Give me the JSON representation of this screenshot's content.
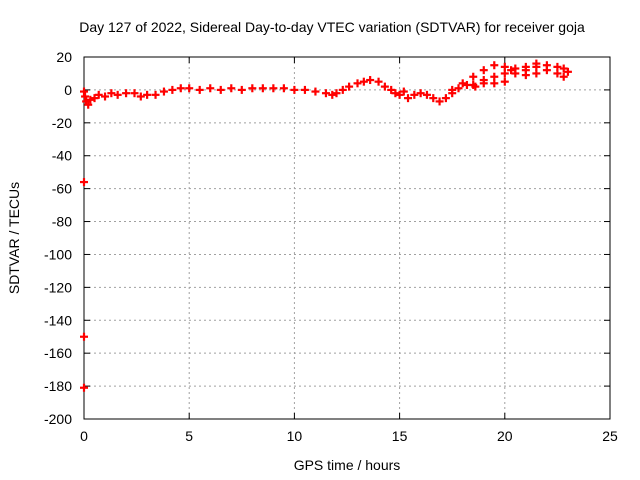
{
  "chart_data": {
    "type": "scatter",
    "title": "Day 127 of 2022, Sidereal Day-to-day VTEC variation (SDTVAR) for receiver goja",
    "xlabel": "GPS time / hours",
    "ylabel": "SDTVAR / TECUs",
    "xlim": [
      0,
      25
    ],
    "ylim": [
      -200,
      20
    ],
    "xticks": [
      0,
      5,
      10,
      15,
      20,
      25
    ],
    "yticks": [
      20,
      0,
      -20,
      -40,
      -60,
      -80,
      -100,
      -120,
      -140,
      -160,
      -180,
      -200
    ],
    "grid": true,
    "series": [
      {
        "name": "SDTVAR",
        "color": "#ff0000",
        "marker": "plus",
        "points": [
          [
            0.0,
            -1
          ],
          [
            0.05,
            -4
          ],
          [
            0.1,
            -7
          ],
          [
            0.2,
            -9
          ],
          [
            0.3,
            -6
          ],
          [
            0.5,
            -5
          ],
          [
            0.7,
            -3
          ],
          [
            1.0,
            -4
          ],
          [
            1.3,
            -2
          ],
          [
            1.6,
            -3
          ],
          [
            2.0,
            -2
          ],
          [
            2.4,
            -2
          ],
          [
            2.7,
            -4
          ],
          [
            3.0,
            -3
          ],
          [
            3.4,
            -3
          ],
          [
            3.8,
            -1
          ],
          [
            4.2,
            0
          ],
          [
            4.6,
            1
          ],
          [
            5.0,
            1
          ],
          [
            5.5,
            0
          ],
          [
            6.0,
            1
          ],
          [
            6.5,
            0
          ],
          [
            7.0,
            1
          ],
          [
            7.5,
            0
          ],
          [
            8.0,
            1
          ],
          [
            8.5,
            1
          ],
          [
            9.0,
            1
          ],
          [
            9.5,
            1
          ],
          [
            10.0,
            0
          ],
          [
            10.5,
            0
          ],
          [
            11.0,
            -1
          ],
          [
            11.5,
            -2
          ],
          [
            11.8,
            -3
          ],
          [
            12.0,
            -2
          ],
          [
            12.3,
            0
          ],
          [
            12.6,
            2
          ],
          [
            13.0,
            4
          ],
          [
            13.3,
            5
          ],
          [
            13.6,
            6
          ],
          [
            14.0,
            5
          ],
          [
            14.3,
            2
          ],
          [
            14.6,
            0
          ],
          [
            14.8,
            -2
          ],
          [
            15.0,
            -3
          ],
          [
            15.2,
            -1
          ],
          [
            15.4,
            -5
          ],
          [
            15.7,
            -3
          ],
          [
            16.0,
            -2
          ],
          [
            16.3,
            -3
          ],
          [
            16.6,
            -5
          ],
          [
            16.9,
            -7
          ],
          [
            17.2,
            -5
          ],
          [
            17.5,
            -2
          ],
          [
            17.8,
            1
          ],
          [
            18.2,
            3
          ],
          [
            18.6,
            2
          ],
          [
            19.0,
            4
          ],
          [
            19.5,
            4
          ],
          [
            20.0,
            5
          ],
          [
            17.5,
            0
          ],
          [
            18.0,
            4
          ],
          [
            18.5,
            8
          ],
          [
            19.0,
            12
          ],
          [
            19.5,
            15
          ],
          [
            20.0,
            14
          ],
          [
            20.3,
            12
          ],
          [
            18.5,
            3
          ],
          [
            19.0,
            6
          ],
          [
            19.5,
            8
          ],
          [
            20.0,
            10
          ],
          [
            20.5,
            10
          ],
          [
            21.0,
            12
          ],
          [
            21.5,
            14
          ],
          [
            20.5,
            13
          ],
          [
            21.0,
            14
          ],
          [
            21.5,
            16
          ],
          [
            22.0,
            15
          ],
          [
            22.5,
            14
          ],
          [
            22.8,
            13
          ],
          [
            23.0,
            11
          ],
          [
            21.0,
            9
          ],
          [
            21.5,
            10
          ],
          [
            22.0,
            12
          ],
          [
            22.5,
            10
          ],
          [
            22.8,
            8
          ],
          [
            0.0,
            -56
          ],
          [
            0.0,
            -150
          ],
          [
            0.0,
            -181
          ]
        ]
      }
    ]
  }
}
